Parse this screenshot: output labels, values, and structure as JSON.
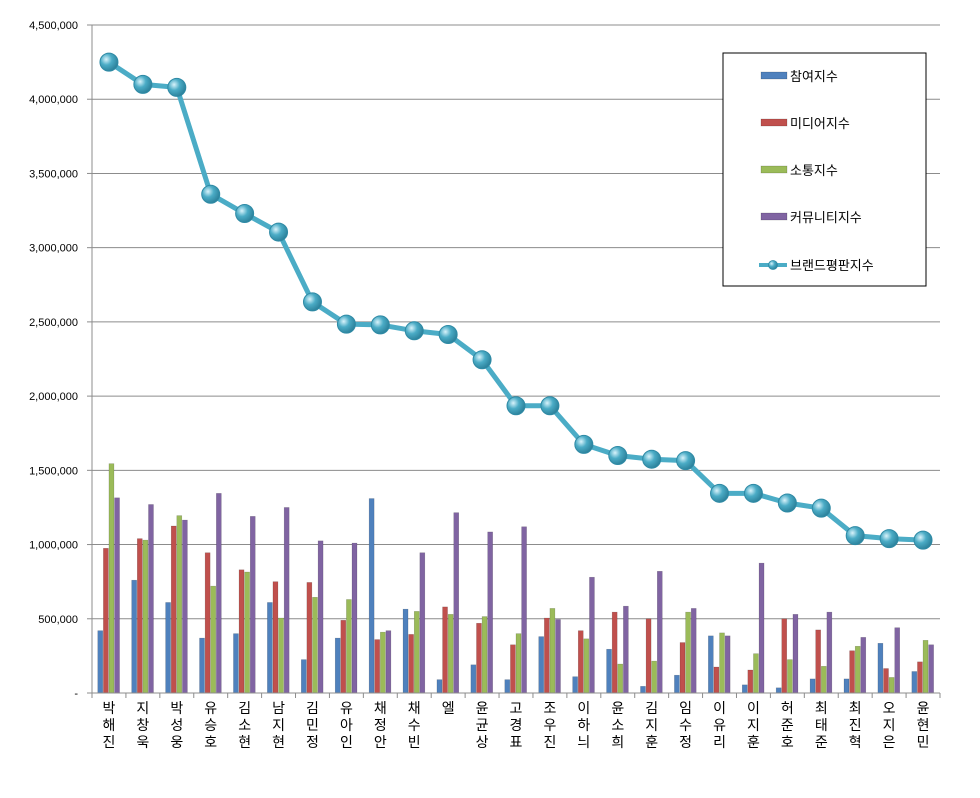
{
  "chart_data": {
    "type": "bar",
    "title": "",
    "xlabel": "",
    "ylabel": "",
    "ylim": [
      0,
      4500000
    ],
    "yticks": [
      0,
      500000,
      1000000,
      1500000,
      2000000,
      2500000,
      3000000,
      3500000,
      4000000,
      4500000
    ],
    "ytick_labels": [
      "-",
      "500,000",
      "1,000,000",
      "1,500,000",
      "2,000,000",
      "2,500,000",
      "3,000,000",
      "3,500,000",
      "4,000,000",
      "4,500,000"
    ],
    "grid": true,
    "legend_position": "top-right",
    "categories": [
      "박해진",
      "지창욱",
      "박성웅",
      "유승호",
      "김소현",
      "남지현",
      "김민정",
      "유아인",
      "채정안",
      "채수빈",
      "엘",
      "윤균상",
      "고경표",
      "조우진",
      "이하늬",
      "윤소희",
      "김지훈",
      "임수정",
      "이유리",
      "이지훈",
      "허준호",
      "최태준",
      "최진혁",
      "오지은",
      "윤현민"
    ],
    "series": [
      {
        "name": "참여지수",
        "kind": "bar",
        "color": "#4F81BD",
        "values": [
          420000,
          760000,
          610000,
          370000,
          400000,
          610000,
          225000,
          370000,
          1310000,
          565000,
          90000,
          190000,
          90000,
          380000,
          110000,
          295000,
          45000,
          120000,
          385000,
          55000,
          35000,
          95000,
          95000,
          335000,
          145000
        ]
      },
      {
        "name": "미디어지수",
        "kind": "bar",
        "color": "#C0504D",
        "values": [
          975000,
          1040000,
          1125000,
          945000,
          830000,
          750000,
          745000,
          490000,
          360000,
          395000,
          580000,
          470000,
          325000,
          505000,
          420000,
          545000,
          500000,
          340000,
          175000,
          155000,
          500000,
          425000,
          285000,
          165000,
          210000
        ]
      },
      {
        "name": "소통지수",
        "kind": "bar",
        "color": "#9BBB59",
        "values": [
          1545000,
          1030000,
          1195000,
          720000,
          815000,
          505000,
          645000,
          630000,
          410000,
          550000,
          530000,
          515000,
          400000,
          570000,
          365000,
          195000,
          215000,
          545000,
          405000,
          265000,
          225000,
          180000,
          315000,
          105000,
          355000
        ]
      },
      {
        "name": "커뮤니티지수",
        "kind": "bar",
        "color": "#8064A2",
        "values": [
          1315000,
          1270000,
          1165000,
          1345000,
          1190000,
          1250000,
          1025000,
          1010000,
          420000,
          945000,
          1215000,
          1085000,
          1120000,
          495000,
          780000,
          585000,
          820000,
          570000,
          385000,
          875000,
          530000,
          545000,
          375000,
          440000,
          325000
        ]
      },
      {
        "name": "브랜드평판지수",
        "kind": "line",
        "color": "#4BACC6",
        "values": [
          4250000,
          4100000,
          4080000,
          3360000,
          3230000,
          3105000,
          2635000,
          2485000,
          2480000,
          2440000,
          2415000,
          2245000,
          1935000,
          1935000,
          1675000,
          1600000,
          1575000,
          1565000,
          1345000,
          1345000,
          1280000,
          1245000,
          1060000,
          1040000,
          1030000
        ]
      }
    ]
  }
}
